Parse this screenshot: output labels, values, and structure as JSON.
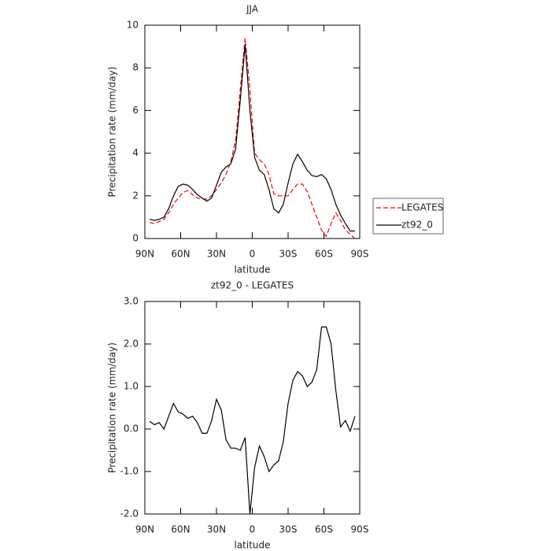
{
  "chart_data": [
    {
      "type": "line",
      "title": "JJA",
      "xlabel": "latitude",
      "ylabel": "Precipitation rate (mm/day)",
      "x": [
        86,
        82,
        78,
        74,
        70,
        66,
        62,
        58,
        54,
        50,
        46,
        42,
        38,
        34,
        30,
        26,
        22,
        18,
        14,
        10,
        6,
        2,
        -2,
        -6,
        -10,
        -14,
        -18,
        -22,
        -26,
        -30,
        -34,
        -38,
        -42,
        -46,
        -50,
        -54,
        -58,
        -62,
        -66,
        -70,
        -74,
        -78,
        -82,
        -86
      ],
      "series": [
        {
          "name": "LEGATES",
          "color": "#ff0000",
          "line_style": "dashed",
          "values": [
            0.75,
            0.7,
            0.8,
            0.9,
            1.2,
            1.6,
            1.9,
            2.15,
            2.25,
            2.05,
            1.9,
            1.85,
            1.85,
            2.0,
            2.3,
            2.6,
            3.0,
            3.6,
            4.6,
            7.0,
            9.4,
            7.0,
            4.0,
            3.7,
            3.5,
            3.0,
            2.1,
            2.0,
            2.0,
            2.0,
            2.3,
            2.55,
            2.55,
            2.2,
            1.6,
            1.0,
            0.4,
            0.1,
            0.7,
            1.2,
            0.85,
            0.4,
            0.2,
            0.0
          ]
        },
        {
          "name": "zt92_0",
          "color": "#000000",
          "line_style": "solid",
          "values": [
            0.9,
            0.85,
            0.9,
            1.0,
            1.4,
            2.0,
            2.45,
            2.55,
            2.5,
            2.3,
            2.05,
            1.9,
            1.75,
            1.9,
            2.5,
            3.1,
            3.35,
            3.5,
            4.2,
            6.5,
            9.1,
            6.0,
            3.8,
            3.2,
            3.0,
            2.3,
            1.4,
            1.2,
            1.6,
            2.6,
            3.5,
            3.95,
            3.6,
            3.2,
            2.95,
            2.9,
            3.0,
            2.8,
            2.3,
            1.6,
            1.1,
            0.7,
            0.35,
            0.35
          ]
        }
      ],
      "xlim": [
        90,
        -90
      ],
      "xticks": [
        {
          "value": 90,
          "label": "90N"
        },
        {
          "value": 60,
          "label": "60N"
        },
        {
          "value": 30,
          "label": "30N"
        },
        0,
        {
          "value": -30,
          "label": "30S"
        },
        {
          "value": -60,
          "label": "60S"
        },
        {
          "value": -90,
          "label": "90S"
        }
      ],
      "ylim": [
        0,
        10
      ],
      "yticks": [
        0,
        2,
        4,
        6,
        8,
        10
      ],
      "legend": "right"
    },
    {
      "type": "line",
      "title": "zt92_0 - LEGATES",
      "xlabel": "latitude",
      "ylabel": "Precipitation rate (mm/day)",
      "x": [
        86,
        82,
        78,
        74,
        70,
        66,
        62,
        58,
        54,
        50,
        46,
        42,
        38,
        34,
        30,
        26,
        22,
        18,
        14,
        10,
        6,
        2,
        -2,
        -6,
        -10,
        -14,
        -18,
        -22,
        -26,
        -30,
        -34,
        -38,
        -42,
        -46,
        -50,
        -54,
        -58,
        -62,
        -66,
        -70,
        -74,
        -78,
        -82,
        -86
      ],
      "series": [
        {
          "color": "#000000",
          "line_style": "solid",
          "values": [
            0.18,
            0.1,
            0.15,
            0.0,
            0.3,
            0.6,
            0.4,
            0.35,
            0.25,
            0.3,
            0.15,
            -0.1,
            -0.1,
            0.2,
            0.7,
            0.45,
            -0.25,
            -0.45,
            -0.45,
            -0.5,
            -0.2,
            -2.0,
            -0.9,
            -0.4,
            -0.65,
            -1.0,
            -0.85,
            -0.75,
            -0.3,
            0.6,
            1.15,
            1.35,
            1.25,
            1.0,
            1.1,
            1.4,
            2.4,
            2.4,
            2.0,
            0.9,
            0.05,
            0.2,
            -0.05,
            0.3
          ]
        }
      ],
      "xlim": [
        90,
        -90
      ],
      "xticks": [
        {
          "value": 90,
          "label": "90N"
        },
        {
          "value": 60,
          "label": "60N"
        },
        {
          "value": 30,
          "label": "30N"
        },
        0,
        {
          "value": -30,
          "label": "30S"
        },
        {
          "value": -60,
          "label": "60S"
        },
        {
          "value": -90,
          "label": "90S"
        }
      ],
      "ylim": [
        -2,
        3
      ],
      "yticks": [
        {
          "value": -2,
          "label": "-2.0"
        },
        {
          "value": -1,
          "label": "-1.0"
        },
        {
          "value": 0,
          "label": "0.0"
        },
        {
          "value": 1,
          "label": "1.0"
        },
        {
          "value": 2,
          "label": "2.0"
        },
        {
          "value": 3,
          "label": "3.0"
        }
      ]
    }
  ]
}
